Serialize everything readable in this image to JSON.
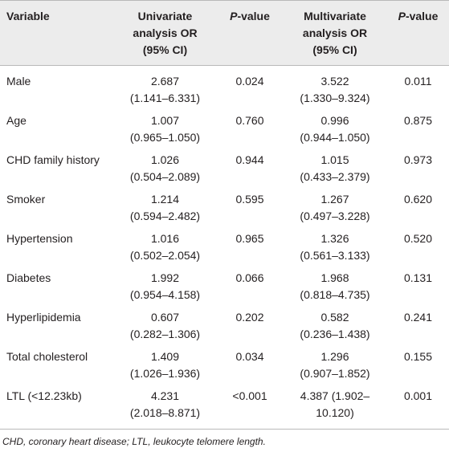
{
  "table": {
    "headers": {
      "variable": "Variable",
      "uni_or": [
        "Univariate",
        "analysis OR",
        "(95% CI)"
      ],
      "p1_italic": "P",
      "p1_rest": "-value",
      "multi_or": [
        "Multivariate",
        "analysis OR",
        "(95% CI)"
      ],
      "p2_italic": "P",
      "p2_rest": "-value"
    },
    "rows": [
      {
        "variable": "Male",
        "uni_or": "2.687",
        "uni_ci": "(1.141–6.331)",
        "uni_p": "0.024",
        "multi_or": "3.522",
        "multi_ci": "(1.330–9.324)",
        "multi_p": "0.011"
      },
      {
        "variable": "Age",
        "uni_or": "1.007",
        "uni_ci": "(0.965–1.050)",
        "uni_p": "0.760",
        "multi_or": "0.996",
        "multi_ci": "(0.944–1.050)",
        "multi_p": "0.875"
      },
      {
        "variable": "CHD family history",
        "uni_or": "1.026",
        "uni_ci": "(0.504–2.089)",
        "uni_p": "0.944",
        "multi_or": "1.015",
        "multi_ci": "(0.433–2.379)",
        "multi_p": "0.973"
      },
      {
        "variable": "Smoker",
        "uni_or": "1.214",
        "uni_ci": "(0.594–2.482)",
        "uni_p": "0.595",
        "multi_or": "1.267",
        "multi_ci": "(0.497–3.228)",
        "multi_p": "0.620"
      },
      {
        "variable": "Hypertension",
        "uni_or": "1.016",
        "uni_ci": "(0.502–2.054)",
        "uni_p": "0.965",
        "multi_or": "1.326",
        "multi_ci": "(0.561–3.133)",
        "multi_p": "0.520"
      },
      {
        "variable": "Diabetes",
        "uni_or": "1.992",
        "uni_ci": "(0.954–4.158)",
        "uni_p": "0.066",
        "multi_or": "1.968",
        "multi_ci": "(0.818–4.735)",
        "multi_p": "0.131"
      },
      {
        "variable": "Hyperlipidemia",
        "uni_or": "0.607",
        "uni_ci": "(0.282–1.306)",
        "uni_p": "0.202",
        "multi_or": "0.582",
        "multi_ci": "(0.236–1.438)",
        "multi_p": "0.241"
      },
      {
        "variable": "Total cholesterol",
        "uni_or": "1.409",
        "uni_ci": "(1.026–1.936)",
        "uni_p": "0.034",
        "multi_or": "1.296",
        "multi_ci": "(0.907–1.852)",
        "multi_p": "0.155"
      },
      {
        "variable": "LTL (<12.23kb)",
        "uni_or": "4.231",
        "uni_ci": "(2.018–8.871)",
        "uni_p": "<0.001",
        "multi_or": "4.387 (1.902–",
        "multi_ci": "10.120)",
        "multi_p": "0.001"
      }
    ]
  },
  "footnote": "CHD, coronary heart disease; LTL, leukocyte telomere length."
}
